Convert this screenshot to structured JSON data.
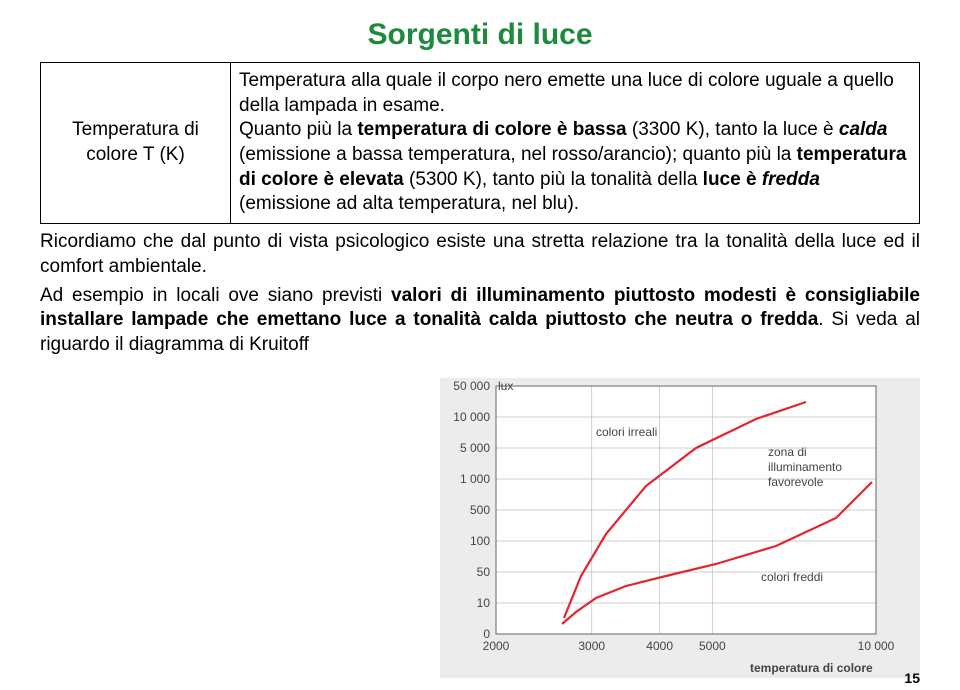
{
  "title": "Sorgenti di luce",
  "title_color": "#1e8a3e",
  "definition": {
    "label_line1": "Temperatura di",
    "label_line2": "colore T (K)",
    "text_parts": {
      "p1a": "Temperatura alla quale il corpo nero emette una luce di colore uguale a quello della lampada in esame.",
      "p2a": "Quanto più la ",
      "p2b": "temperatura di colore è bassa",
      "p2c": " (3300 K), tanto la luce è ",
      "p2d": "calda",
      "p2e": " (emissione a bassa temperatura, nel rosso/arancio); quanto più la ",
      "p2f": "temperatura di colore è elevata",
      "p2g": " (5300 K), tanto più la tonalità della ",
      "p2h": "luce è ",
      "p2i": "fredda",
      "p2j": " (emissione ad alta temperatura, nel blu)."
    }
  },
  "para1": "Ricordiamo che dal punto di vista psicologico esiste una stretta relazione tra la tonalità della luce ed il comfort ambientale.",
  "para2_parts": {
    "a": "Ad esempio in locali ove siano previsti ",
    "b": "valori di illuminamento piuttosto modesti è consigliabile installare lampade che emettano luce a tonalità calda piuttosto che neutra o fredda",
    "c": ". Si veda al riguardo il diagramma di Kruitoff"
  },
  "page_number": "15",
  "chart": {
    "bg": "#ececec",
    "canvas_bg": "#ffffff",
    "grid_color": "#bdbdbd",
    "axis_color": "#666666",
    "curve_color": "#e4242e",
    "curve_width": 2.2,
    "y_label": "lux",
    "x_label": "temperatura di colore",
    "y_ticks": [
      "0",
      "10",
      "50",
      "100",
      "500",
      "1 000",
      "5 000",
      "10 000",
      "50 000"
    ],
    "x_ticks": [
      "2000",
      "3000",
      "4000",
      "5000",
      "10 000"
    ],
    "zones": {
      "unreal": "colori irreali",
      "favorable_l1": "zona di",
      "favorable_l2": "illuminamento",
      "favorable_l3": "favorevole",
      "cold": "colori freddi"
    },
    "upper_curve": [
      [
        68,
        232
      ],
      [
        85,
        190
      ],
      [
        110,
        148
      ],
      [
        150,
        100
      ],
      [
        200,
        62
      ],
      [
        260,
        33
      ],
      [
        310,
        16
      ]
    ],
    "lower_curve": [
      [
        66,
        238
      ],
      [
        80,
        226
      ],
      [
        100,
        212
      ],
      [
        130,
        200
      ],
      [
        170,
        190
      ],
      [
        220,
        178
      ],
      [
        280,
        160
      ],
      [
        340,
        132
      ],
      [
        376,
        96
      ]
    ]
  }
}
